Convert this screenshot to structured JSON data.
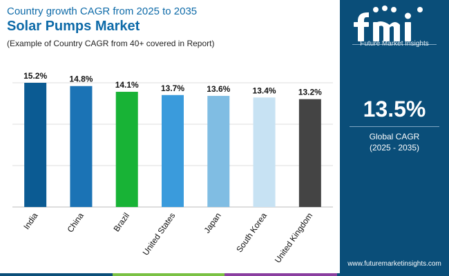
{
  "header": {
    "subtitle": "Country growth CAGR from 2025 to 2035",
    "title": "Solar Pumps Market",
    "note": "(Example of Country CAGR from 40+ covered in Report)"
  },
  "sidebar": {
    "brand": "Future Market Insights",
    "global_value": "13.5%",
    "global_label": "Global CAGR",
    "global_period": "(2025 - 2035)",
    "url": "www.futuremarketinsights.com"
  },
  "colors": {
    "accent": "#0d6aa8",
    "sidebar": "#0a4e79",
    "bottom_bar": [
      "#0a4e79",
      "#7ac143",
      "#8a3ea0",
      "#0a4e79"
    ]
  },
  "chart_data": {
    "type": "bar",
    "categories": [
      "India",
      "China",
      "Brazil",
      "United States",
      "Japan",
      "South Korea",
      "United Kingdom"
    ],
    "values": [
      15.2,
      14.8,
      14.1,
      13.7,
      13.6,
      13.4,
      13.2
    ],
    "data_labels": [
      "15.2%",
      "14.8%",
      "14.1%",
      "13.7%",
      "13.6%",
      "13.4%",
      "13.2%"
    ],
    "colors": [
      "#0b5b93",
      "#1b73b5",
      "#18b336",
      "#3a9bdc",
      "#80bde3",
      "#c7e2f3",
      "#444444"
    ],
    "ylim": [
      0,
      15.2
    ],
    "grid": true,
    "xlabel": "",
    "ylabel": ""
  }
}
